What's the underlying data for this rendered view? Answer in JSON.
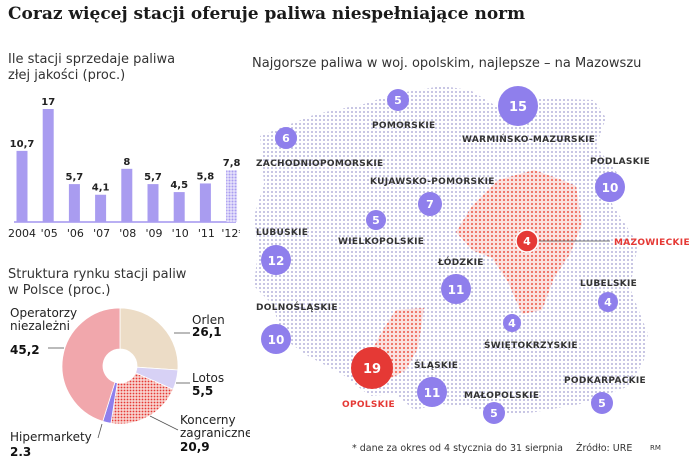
{
  "title": "Coraz więcej stacji oferuje paliwa niespełniające norm",
  "bar_subtitle_1": "Ile stacji sprzedaje paliwa",
  "bar_subtitle_2": "złej jakości (proc.)",
  "pie_subtitle_1": "Struktura rynku stacji paliw",
  "pie_subtitle_2": "w Polsce (proc.)",
  "map_subtitle": "Najgorsze paliwa w woj. opolskim, najlepsze – na Mazowszu",
  "footnote": "* dane za okres od 4 stycznia do 31 sierpnia",
  "source": "Źródło: URE",
  "credit": "RM",
  "colors": {
    "bar": "#a99cf0",
    "bubble": "#8f7fec",
    "red": "#e53935",
    "map_dots": "#b9b6dd",
    "map_red": "#f28b82",
    "pie_orlen": "#ecdcc6",
    "pie_lotos": "#d7d1f5",
    "pie_foreign": "#e53935",
    "pie_hiper": "#8f7fec",
    "pie_independent": "#f1a7ac"
  },
  "chart_data": [
    {
      "type": "bar",
      "categories": [
        "2004",
        "'05",
        "'06",
        "'07",
        "'08",
        "'09",
        "'10",
        "'11",
        "'12*"
      ],
      "values": [
        10.7,
        17,
        5.7,
        4.1,
        8,
        5.7,
        4.5,
        5.8,
        7.8
      ],
      "value_labels": [
        "10,7",
        "17",
        "5,7",
        "4,1",
        "8",
        "5,7",
        "4,5",
        "5,8",
        "7,8"
      ],
      "ylim": [
        0,
        17
      ],
      "highlight_last": true
    },
    {
      "type": "pie",
      "donut": true,
      "slices": [
        {
          "name": "Orlen",
          "value": 26.1,
          "label": "26,1"
        },
        {
          "name": "Lotos",
          "value": 5.5,
          "label": "5,5"
        },
        {
          "name": "Koncerny zagraniczne",
          "value": 20.9,
          "label": "20,9"
        },
        {
          "name": "Hipermarkety",
          "value": 2.3,
          "label": "2,3"
        },
        {
          "name": "Operatorzy niezależni",
          "value": 45.2,
          "label": "45,2"
        }
      ]
    },
    {
      "type": "map",
      "regions": [
        {
          "name": "POMORSKIE",
          "value": 5,
          "label": "5"
        },
        {
          "name": "WARMIŃSKO-MAZURSKIE",
          "value": 15,
          "label": "15"
        },
        {
          "name": "ZACHODNIOPOMORSKIE",
          "value": 6,
          "label": "6"
        },
        {
          "name": "PODLASKIE",
          "value": 10,
          "label": "10"
        },
        {
          "name": "KUJAWSKO-POMORSKIE",
          "value": 7,
          "label": "7"
        },
        {
          "name": "WIELKOPOLSKIE",
          "value": 5,
          "label": "5"
        },
        {
          "name": "MAZOWIECKIE",
          "value": 4,
          "label": "4",
          "best": true
        },
        {
          "name": "LUBUSKIE",
          "value": 12,
          "label": "12"
        },
        {
          "name": "ŁÓDZKIE",
          "value": 11,
          "label": "11"
        },
        {
          "name": "LUBELSKIE",
          "value": 4,
          "label": "4"
        },
        {
          "name": "DOLNOŚLĄSKIE",
          "value": 10,
          "label": "10"
        },
        {
          "name": "ŚWIĘTOKRZYSKIE",
          "value": 4,
          "label": "4"
        },
        {
          "name": "OPOLSKIE",
          "value": 19,
          "label": "19",
          "worst": true
        },
        {
          "name": "ŚLĄSKIE",
          "value": 11,
          "label": "11"
        },
        {
          "name": "MAŁOPOLSKIE",
          "value": 5,
          "label": "5"
        },
        {
          "name": "PODKARPACKIE",
          "value": 5,
          "label": "5"
        }
      ]
    }
  ]
}
